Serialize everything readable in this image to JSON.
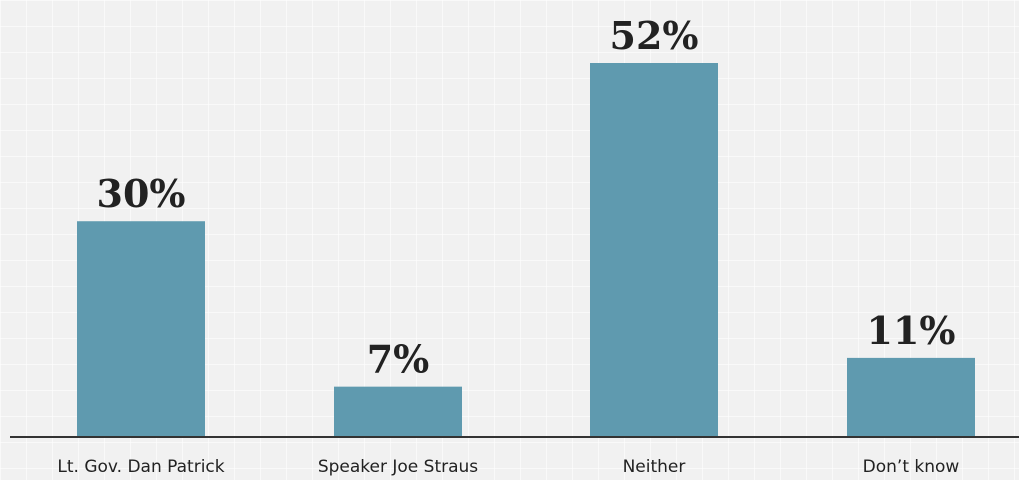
{
  "chart_data": {
    "type": "bar",
    "categories": [
      "Lt. Gov. Dan Patrick",
      "Speaker Joe Straus",
      "Neither",
      "Don’t know"
    ],
    "values": [
      30,
      7,
      52,
      11
    ],
    "value_labels": [
      "30%",
      "7%",
      "52%",
      "11%"
    ],
    "title": "",
    "xlabel": "",
    "ylabel": "",
    "ylim": [
      0,
      52
    ],
    "grid": false,
    "legend": "none",
    "bar_color": "#5f9aaf",
    "axis_color": "#333333"
  }
}
